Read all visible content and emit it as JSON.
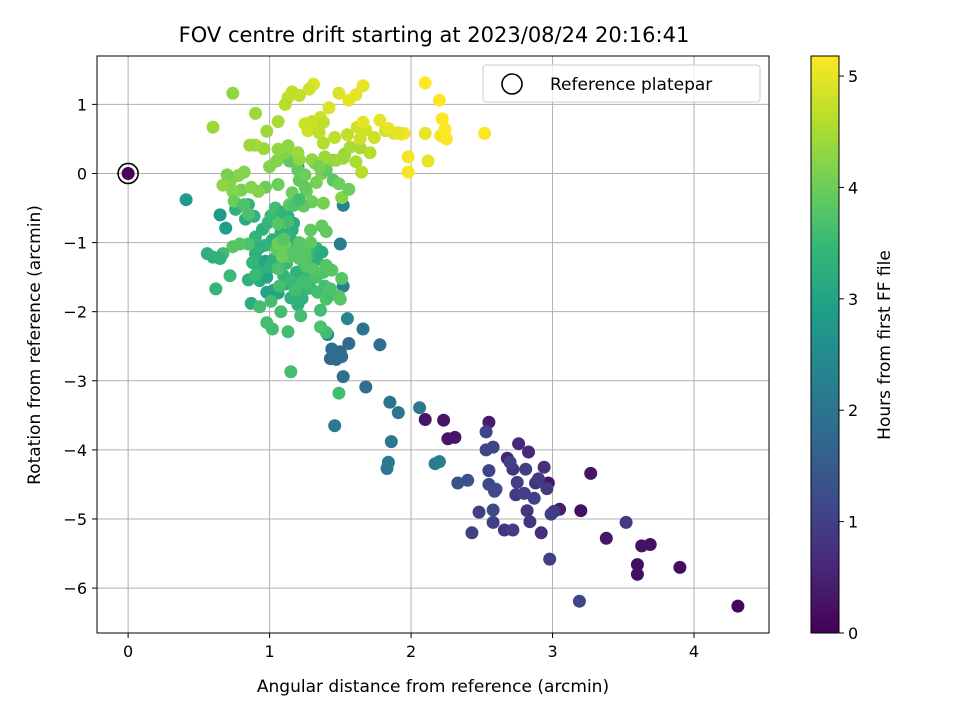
{
  "chart_data": {
    "type": "scatter",
    "title": "FOV centre drift starting at 2023/08/24 20:16:41",
    "xlabel": "Angular distance from reference (arcmin)",
    "ylabel": "Rotation from reference (arcmin)",
    "xlim": [
      -0.22,
      4.53
    ],
    "ylim": [
      -6.65,
      1.7
    ],
    "xticks": [
      0,
      1,
      2,
      3,
      4
    ],
    "yticks": [
      1,
      0,
      -1,
      -2,
      -3,
      -4,
      -5,
      -6
    ],
    "xtick_labels": [
      "0",
      "1",
      "2",
      "3",
      "4"
    ],
    "ytick_labels": [
      "1",
      "0",
      "−1",
      "−2",
      "−3",
      "−4",
      "−5",
      "−6"
    ],
    "grid": true,
    "legend": {
      "position": "top-right",
      "label": "Reference platepar"
    },
    "reference_point": {
      "x": 0,
      "y": 0
    },
    "colorbar": {
      "label": "Hours from first FF file",
      "range": [
        0,
        5.18
      ],
      "ticks": [
        0,
        1,
        2,
        3,
        4,
        5
      ],
      "tick_labels": [
        "0",
        "1",
        "2",
        "3",
        "4",
        "5"
      ],
      "colormap": "viridis",
      "stops": [
        "#440154",
        "#482878",
        "#3e4989",
        "#31688e",
        "#26828e",
        "#1f9e89",
        "#35b779",
        "#6ece58",
        "#b5de2b",
        "#fde725"
      ]
    },
    "points": [
      [
        0.0,
        0.0,
        0.05
      ],
      [
        4.31,
        -6.26,
        0.1
      ],
      [
        3.9,
        -5.7,
        0.2
      ],
      [
        3.69,
        -5.37,
        0.25
      ],
      [
        3.63,
        -5.39,
        0.25
      ],
      [
        3.6,
        -5.66,
        0.2
      ],
      [
        3.6,
        -5.8,
        0.2
      ],
      [
        3.38,
        -5.28,
        0.3
      ],
      [
        3.2,
        -4.88,
        0.2
      ],
      [
        3.27,
        -4.34,
        0.3
      ],
      [
        2.97,
        -4.48,
        0.3
      ],
      [
        3.05,
        -4.86,
        0.4
      ],
      [
        2.1,
        -3.56,
        0.3
      ],
      [
        2.23,
        -3.57,
        0.3
      ],
      [
        2.26,
        -3.84,
        0.3
      ],
      [
        2.31,
        -3.82,
        0.3
      ],
      [
        2.55,
        -3.6,
        0.4
      ],
      [
        2.68,
        -4.12,
        0.5
      ],
      [
        2.76,
        -3.91,
        0.6
      ],
      [
        2.83,
        -4.03,
        0.6
      ],
      [
        2.94,
        -4.25,
        0.7
      ],
      [
        2.72,
        -4.28,
        0.8
      ],
      [
        2.88,
        -4.48,
        0.8
      ],
      [
        2.96,
        -4.56,
        0.9
      ],
      [
        3.01,
        -4.89,
        0.9
      ],
      [
        2.66,
        -5.16,
        0.8
      ],
      [
        2.82,
        -4.88,
        0.8
      ],
      [
        2.92,
        -5.2,
        0.7
      ],
      [
        2.84,
        -5.04,
        0.8
      ],
      [
        2.58,
        -5.05,
        1.0
      ],
      [
        2.43,
        -5.2,
        1.0
      ],
      [
        2.48,
        -4.9,
        1.0
      ],
      [
        2.55,
        -4.3,
        1.1
      ],
      [
        2.53,
        -4.0,
        1.1
      ],
      [
        2.53,
        -3.74,
        1.1
      ],
      [
        2.58,
        -3.96,
        1.1
      ],
      [
        2.6,
        -4.57,
        1.2
      ],
      [
        2.75,
        -4.47,
        1.0
      ],
      [
        2.81,
        -4.28,
        1.0
      ],
      [
        2.74,
        -4.65,
        0.9
      ],
      [
        2.9,
        -4.42,
        0.9
      ],
      [
        2.98,
        -5.58,
        1.0
      ],
      [
        3.52,
        -5.05,
        0.9
      ],
      [
        3.19,
        -6.19,
        1.1
      ],
      [
        2.7,
        -4.18,
        1.0
      ],
      [
        2.55,
        -4.5,
        1.2
      ],
      [
        2.59,
        -4.6,
        1.2
      ],
      [
        2.8,
        -4.63,
        1.0
      ],
      [
        2.87,
        -4.7,
        1.0
      ],
      [
        2.99,
        -4.93,
        0.95
      ],
      [
        2.33,
        -4.48,
        1.3
      ],
      [
        2.4,
        -4.44,
        1.3
      ],
      [
        2.58,
        -4.87,
        1.2
      ],
      [
        2.72,
        -5.16,
        1.0
      ],
      [
        1.83,
        -4.27,
        2.1
      ],
      [
        1.84,
        -4.18,
        2.1
      ],
      [
        1.86,
        -3.88,
        2.1
      ],
      [
        2.06,
        -3.39,
        2.1
      ],
      [
        2.17,
        -4.2,
        2.1
      ],
      [
        2.2,
        -4.17,
        2.2
      ],
      [
        1.85,
        -3.31,
        2.0
      ],
      [
        1.91,
        -3.46,
        2.0
      ],
      [
        1.68,
        -3.09,
        1.9
      ],
      [
        1.78,
        -2.48,
        1.9
      ],
      [
        1.52,
        -2.94,
        1.9
      ],
      [
        1.47,
        -2.69,
        1.8
      ],
      [
        1.56,
        -2.46,
        1.8
      ],
      [
        1.5,
        -2.58,
        1.8
      ],
      [
        1.48,
        -2.62,
        1.8
      ],
      [
        1.43,
        -2.68,
        1.8
      ],
      [
        1.44,
        -2.54,
        1.85
      ],
      [
        1.51,
        -2.65,
        1.85
      ],
      [
        1.66,
        -2.25,
        2.0
      ],
      [
        1.46,
        -3.65,
        2.1
      ],
      [
        1.41,
        -2.33,
        2.3
      ],
      [
        1.52,
        -1.63,
        2.3
      ],
      [
        1.5,
        -1.02,
        2.2
      ],
      [
        1.52,
        -0.46,
        2.3
      ],
      [
        1.55,
        -2.1,
        2.4
      ],
      [
        1.2,
        0.1,
        2.0
      ],
      [
        0.41,
        -0.38,
        2.8
      ],
      [
        0.65,
        -0.6,
        2.8
      ],
      [
        0.77,
        -0.49,
        2.8
      ],
      [
        0.69,
        -0.79,
        2.9
      ],
      [
        0.6,
        -1.21,
        3.3
      ],
      [
        0.56,
        -1.16,
        3.3
      ],
      [
        0.62,
        -1.67,
        3.4
      ],
      [
        0.72,
        -1.48,
        3.5
      ],
      [
        0.85,
        -1.54,
        3.3
      ],
      [
        0.87,
        -1.88,
        3.2
      ],
      [
        0.93,
        -1.55,
        3.2
      ],
      [
        0.95,
        -1.45,
        3.1
      ],
      [
        0.92,
        -1.32,
        3.1
      ],
      [
        0.97,
        -1.27,
        3.0
      ],
      [
        0.98,
        -1.5,
        3.0
      ],
      [
        1.03,
        -1.69,
        3.0
      ],
      [
        1.06,
        -1.73,
        3.0
      ],
      [
        0.98,
        -1.72,
        3.0
      ],
      [
        1.11,
        -1.6,
        3.2
      ],
      [
        1.13,
        -1.55,
        3.3
      ],
      [
        1.15,
        -1.8,
        3.3
      ],
      [
        1.2,
        -1.9,
        3.3
      ],
      [
        1.23,
        -1.81,
        3.3
      ],
      [
        1.24,
        -1.69,
        3.4
      ],
      [
        1.19,
        -1.67,
        3.4
      ],
      [
        1.26,
        -1.48,
        3.6
      ],
      [
        1.27,
        -1.38,
        3.5
      ],
      [
        1.33,
        -1.5,
        3.5
      ],
      [
        1.29,
        -1.66,
        3.5
      ],
      [
        1.34,
        -1.72,
        3.6
      ],
      [
        1.39,
        -1.63,
        3.6
      ],
      [
        1.36,
        -1.98,
        3.6
      ],
      [
        1.4,
        -2.3,
        3.6
      ],
      [
        1.4,
        -1.82,
        3.7
      ],
      [
        1.44,
        -1.75,
        3.6
      ],
      [
        1.5,
        -1.82,
        3.8
      ],
      [
        1.51,
        -1.52,
        3.8
      ],
      [
        1.49,
        -1.78,
        3.8
      ],
      [
        1.36,
        -2.22,
        3.7
      ],
      [
        1.22,
        -2.06,
        3.6
      ],
      [
        1.08,
        -2.0,
        3.6
      ],
      [
        1.13,
        -2.29,
        3.6
      ],
      [
        1.02,
        -2.25,
        3.6
      ],
      [
        0.98,
        -2.16,
        3.6
      ],
      [
        0.93,
        -1.93,
        3.6
      ],
      [
        1.01,
        -1.85,
        3.6
      ],
      [
        1.19,
        -1.43,
        3.3
      ],
      [
        1.33,
        -1.25,
        3.3
      ],
      [
        1.29,
        -1.21,
        3.3
      ],
      [
        1.33,
        -1.08,
        3.4
      ],
      [
        1.37,
        -1.14,
        3.2
      ],
      [
        1.24,
        -1.1,
        3.3
      ],
      [
        1.22,
        -1.02,
        3.3
      ],
      [
        1.17,
        -0.99,
        3.2
      ],
      [
        1.16,
        -0.82,
        3.3
      ],
      [
        1.1,
        -1.27,
        3.3
      ],
      [
        1.03,
        -1.24,
        3.3
      ],
      [
        0.97,
        -1.04,
        3.4
      ],
      [
        1.0,
        -1.02,
        3.4
      ],
      [
        0.9,
        -0.92,
        3.4
      ],
      [
        0.95,
        -0.81,
        3.3
      ],
      [
        0.99,
        -0.71,
        3.4
      ],
      [
        1.01,
        -0.61,
        3.5
      ],
      [
        1.04,
        -0.5,
        3.6
      ],
      [
        1.09,
        -0.56,
        3.4
      ],
      [
        1.13,
        -0.62,
        3.3
      ],
      [
        1.17,
        -0.72,
        3.2
      ],
      [
        1.08,
        -0.86,
        3.3
      ],
      [
        1.02,
        -0.96,
        3.3
      ],
      [
        0.93,
        -1.07,
        3.3
      ],
      [
        0.9,
        -1.16,
        3.3
      ],
      [
        0.88,
        -1.29,
        3.4
      ],
      [
        0.92,
        -1.43,
        3.3
      ],
      [
        1.0,
        -1.36,
        3.3
      ],
      [
        0.9,
        -1.47,
        3.5
      ],
      [
        0.85,
        -1.02,
        3.7
      ],
      [
        0.79,
        -1.02,
        3.8
      ],
      [
        0.74,
        -1.06,
        3.8
      ],
      [
        0.67,
        -1.16,
        3.6
      ],
      [
        0.65,
        -1.23,
        3.3
      ],
      [
        0.76,
        -0.52,
        3.3
      ],
      [
        0.85,
        -0.45,
        3.3
      ],
      [
        0.83,
        -0.66,
        3.2
      ],
      [
        0.89,
        -0.62,
        3.3
      ],
      [
        1.15,
        -2.87,
        3.6
      ],
      [
        1.49,
        -3.18,
        3.6
      ],
      [
        1.27,
        -1.48,
        3.5
      ],
      [
        1.1,
        -1.48,
        3.4
      ],
      [
        1.24,
        -1.29,
        3.5
      ],
      [
        1.33,
        -1.5,
        3.7
      ],
      [
        1.15,
        -1.55,
        3.5
      ],
      [
        1.12,
        -1.3,
        3.5
      ],
      [
        1.26,
        -1.59,
        3.6
      ],
      [
        1.43,
        -1.67,
        3.7
      ],
      [
        1.38,
        -1.43,
        3.7
      ],
      [
        1.44,
        -1.4,
        3.8
      ],
      [
        1.4,
        -1.33,
        3.8
      ],
      [
        1.26,
        -1.21,
        3.7
      ],
      [
        1.18,
        -1.13,
        3.7
      ],
      [
        1.06,
        -1.38,
        3.7
      ],
      [
        1.07,
        -1.63,
        3.6
      ],
      [
        1.18,
        -1.69,
        3.6
      ],
      [
        1.23,
        -1.57,
        3.6
      ],
      [
        1.31,
        -1.39,
        3.8
      ],
      [
        1.26,
        -1.34,
        3.8
      ],
      [
        1.21,
        -1.23,
        3.8
      ],
      [
        1.14,
        -1.21,
        3.8
      ],
      [
        1.09,
        -1.15,
        3.8
      ],
      [
        1.05,
        -1.1,
        3.9
      ],
      [
        1.06,
        -1.01,
        4.0
      ],
      [
        1.11,
        -1.04,
        4.0
      ],
      [
        1.09,
        -1.2,
        4.0
      ],
      [
        1.17,
        -1.15,
        3.8
      ],
      [
        1.21,
        -1.0,
        3.8
      ],
      [
        1.25,
        -1.14,
        3.8
      ],
      [
        1.29,
        -1.0,
        3.9
      ],
      [
        1.29,
        -0.82,
        3.9
      ],
      [
        1.37,
        -0.76,
        3.9
      ],
      [
        1.4,
        -0.84,
        3.9
      ],
      [
        1.3,
        -0.41,
        4.0
      ],
      [
        1.38,
        -0.43,
        4.1
      ],
      [
        1.51,
        -0.35,
        4.2
      ],
      [
        1.37,
        0.0,
        4.1
      ],
      [
        1.33,
        -0.13,
        4.1
      ],
      [
        1.26,
        -0.26,
        4.0
      ],
      [
        1.16,
        -0.28,
        4.0
      ],
      [
        1.06,
        -0.16,
        4.0
      ],
      [
        0.97,
        -0.2,
        4.0
      ],
      [
        0.92,
        -0.26,
        4.2
      ],
      [
        0.8,
        -0.24,
        4.1
      ],
      [
        0.74,
        -0.26,
        4.2
      ],
      [
        0.72,
        -0.13,
        4.2
      ],
      [
        0.78,
        -0.03,
        4.2
      ],
      [
        0.82,
        0.02,
        4.2
      ],
      [
        0.7,
        -0.02,
        4.1
      ],
      [
        0.67,
        -0.17,
        4.3
      ],
      [
        0.75,
        -0.4,
        4.0
      ],
      [
        0.82,
        -0.45,
        3.7
      ],
      [
        0.85,
        -0.59,
        3.7
      ],
      [
        1.13,
        -0.7,
        3.6
      ],
      [
        1.24,
        -0.47,
        3.9
      ],
      [
        1.14,
        -0.45,
        3.9
      ],
      [
        1.06,
        -0.73,
        3.8
      ],
      [
        1.1,
        -0.95,
        3.8
      ],
      [
        1.17,
        -0.46,
        3.7
      ],
      [
        1.21,
        -0.38,
        3.6
      ],
      [
        1.25,
        -0.2,
        3.9
      ],
      [
        1.21,
        -0.1,
        3.9
      ],
      [
        1.14,
        0.18,
        3.9
      ],
      [
        1.2,
        0.05,
        3.9
      ],
      [
        1.32,
        0.15,
        4.1
      ],
      [
        1.4,
        0.05,
        3.9
      ],
      [
        1.45,
        -0.1,
        3.8
      ],
      [
        1.49,
        -0.15,
        4.0
      ],
      [
        1.56,
        -0.23,
        4.0
      ],
      [
        1.44,
        0.19,
        4.2
      ],
      [
        1.53,
        0.28,
        4.3
      ],
      [
        1.57,
        0.38,
        4.5
      ],
      [
        1.64,
        0.37,
        4.5
      ],
      [
        1.52,
        0.22,
        4.4
      ],
      [
        1.61,
        0.17,
        4.5
      ],
      [
        1.65,
        0.02,
        4.6
      ],
      [
        1.71,
        0.3,
        4.6
      ],
      [
        1.74,
        0.52,
        4.8
      ],
      [
        1.68,
        0.63,
        4.8
      ],
      [
        1.82,
        0.62,
        4.8
      ],
      [
        1.88,
        0.58,
        4.9
      ],
      [
        1.93,
        0.57,
        5.1
      ],
      [
        1.95,
        0.58,
        5.1
      ],
      [
        1.98,
        0.24,
        5.1
      ],
      [
        1.98,
        0.02,
        5.1
      ],
      [
        2.1,
        0.58,
        5.0
      ],
      [
        2.12,
        0.18,
        5.0
      ],
      [
        2.21,
        0.55,
        5.1
      ],
      [
        2.22,
        0.79,
        5.2
      ],
      [
        2.24,
        0.64,
        5.2
      ],
      [
        2.25,
        0.5,
        5.2
      ],
      [
        2.52,
        0.58,
        5.2
      ],
      [
        2.2,
        1.06,
        5.2
      ],
      [
        2.1,
        1.31,
        5.2
      ],
      [
        1.66,
        1.27,
        5.0
      ],
      [
        1.61,
        1.14,
        5.0
      ],
      [
        1.56,
        1.06,
        5.0
      ],
      [
        1.49,
        1.16,
        4.9
      ],
      [
        1.42,
        0.95,
        4.9
      ],
      [
        1.36,
        0.81,
        4.8
      ],
      [
        1.3,
        0.75,
        4.7
      ],
      [
        1.34,
        0.67,
        4.8
      ],
      [
        1.38,
        0.74,
        4.7
      ],
      [
        1.31,
        1.29,
        4.9
      ],
      [
        1.28,
        1.22,
        4.8
      ],
      [
        1.21,
        1.13,
        4.7
      ],
      [
        1.16,
        1.18,
        4.7
      ],
      [
        1.13,
        1.1,
        4.7
      ],
      [
        1.11,
        1.0,
        4.6
      ],
      [
        1.06,
        0.75,
        4.5
      ],
      [
        0.98,
        0.61,
        4.4
      ],
      [
        0.9,
        0.41,
        4.5
      ],
      [
        0.86,
        0.41,
        4.4
      ],
      [
        0.9,
        0.87,
        4.4
      ],
      [
        0.74,
        1.16,
        4.3
      ],
      [
        0.6,
        0.67,
        4.4
      ],
      [
        1.25,
        0.72,
        4.8
      ],
      [
        1.27,
        0.62,
        4.8
      ],
      [
        1.35,
        0.59,
        4.7
      ],
      [
        1.38,
        0.44,
        4.6
      ],
      [
        1.46,
        0.52,
        4.7
      ],
      [
        1.55,
        0.56,
        4.7
      ],
      [
        1.62,
        0.67,
        4.8
      ],
      [
        1.64,
        0.5,
        4.8
      ],
      [
        1.66,
        0.74,
        5.0
      ],
      [
        1.78,
        0.77,
        5.0
      ],
      [
        1.84,
        0.65,
        5.0
      ],
      [
        1.91,
        0.59,
        5.0
      ],
      [
        1.21,
        0.2,
        4.3
      ],
      [
        1.11,
        0.3,
        4.2
      ],
      [
        1.05,
        0.18,
        4.2
      ],
      [
        1.06,
        0.35,
        4.3
      ],
      [
        1.13,
        0.4,
        4.3
      ],
      [
        0.96,
        0.36,
        4.4
      ],
      [
        1.3,
        0.2,
        4.3
      ],
      [
        1.39,
        0.24,
        4.4
      ],
      [
        1.47,
        0.19,
        4.4
      ],
      [
        1.2,
        0.3,
        4.4
      ],
      [
        1.25,
        -0.02,
        4.0
      ],
      [
        1.35,
        0.1,
        4.1
      ],
      [
        1.0,
        0.1,
        4.2
      ],
      [
        0.87,
        -0.2,
        4.2
      ]
    ]
  }
}
